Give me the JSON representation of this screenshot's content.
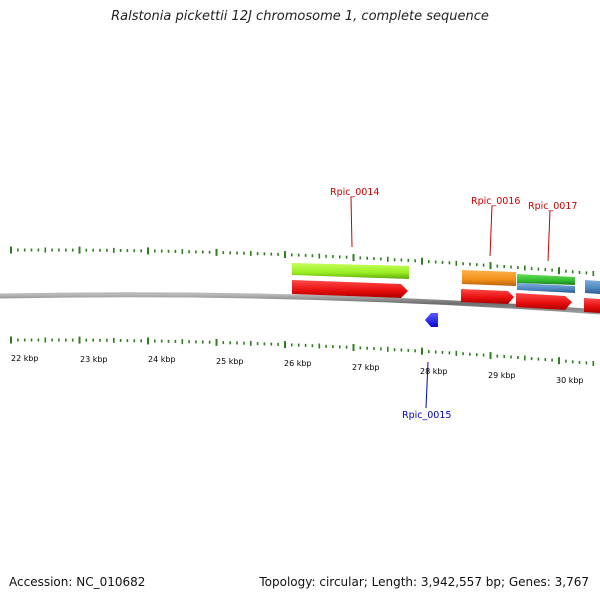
{
  "title": "Ralstonia pickettii 12J chromosome 1, complete sequence",
  "footer": {
    "accession": "Accession: NC_010682",
    "summary": "Topology: circular; Length: 3,942,557 bp; Genes: 3,767"
  },
  "scale_labels": [
    "22 kbp",
    "23 kbp",
    "24 kbp",
    "25 kbp",
    "26 kbp",
    "27 kbp",
    "28 kbp",
    "29 kbp",
    "30 kbp"
  ],
  "gene_labels": [
    {
      "id": "rpic-0014",
      "text": "Rpic_0014",
      "strand": "forward"
    },
    {
      "id": "rpic-0016",
      "text": "Rpic_0016",
      "strand": "forward"
    },
    {
      "id": "rpic-0017",
      "text": "Rpic_0017",
      "strand": "forward"
    },
    {
      "id": "rpic-0015",
      "text": "Rpic_0015",
      "strand": "reverse"
    }
  ],
  "colors": {
    "forward_label": "#cc0000",
    "reverse_label": "#0000cc",
    "tick": "#2e7d1e",
    "backbone": "#7a7a7a",
    "gene_red": "#ee1111",
    "gene_lime": "#99ee22",
    "gene_orange": "#f0901a",
    "gene_green": "#33bb33",
    "gene_steel": "#4f86c0",
    "gene_blue": "#1a1aee"
  }
}
